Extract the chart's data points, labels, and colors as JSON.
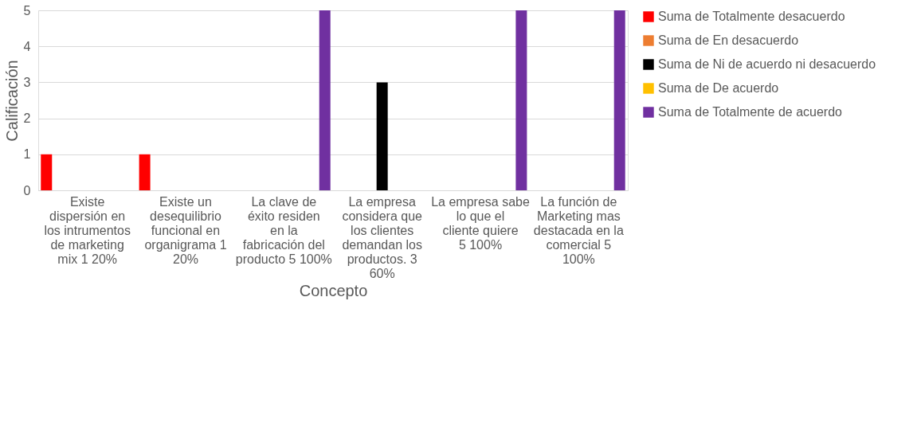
{
  "chart_data": {
    "type": "bar",
    "xlabel": "Concepto",
    "ylabel": "Calificación",
    "categories": [
      "Existe dispersión en los intrumentos de marketing mix 1 20%",
      "Existe un desequilibrio funcional en organigrama 1 20%",
      "La clave de éxito residen en la fabricación del producto 5 100%",
      "La empresa considera que los clientes demandan los productos. 3 60%",
      "La empresa sabe lo que el cliente quiere 5 100%",
      "La función de Marketing mas destacada en la comercial 5 100%"
    ],
    "series": [
      {
        "name": "Suma de Totalmente desacuerdo",
        "color": "#ff0000",
        "values": [
          1,
          1,
          null,
          null,
          null,
          null
        ]
      },
      {
        "name": "Suma de En desacuerdo",
        "color": "#ed7d31",
        "values": [
          null,
          null,
          null,
          null,
          null,
          null
        ]
      },
      {
        "name": "Suma de Ni de acuerdo ni desacuerdo",
        "color": "#000000",
        "values": [
          null,
          null,
          null,
          3,
          null,
          null
        ]
      },
      {
        "name": "Suma de De acuerdo",
        "color": "#ffc000",
        "values": [
          null,
          null,
          null,
          null,
          null,
          null
        ]
      },
      {
        "name": "Suma de Totalmente de acuerdo",
        "color": "#7030a0",
        "values": [
          null,
          null,
          5,
          null,
          5,
          5
        ]
      }
    ],
    "ylim": [
      0,
      5
    ],
    "yticks": [
      0,
      1,
      2,
      3,
      4,
      5
    ],
    "grid": "y",
    "legend": "right"
  }
}
